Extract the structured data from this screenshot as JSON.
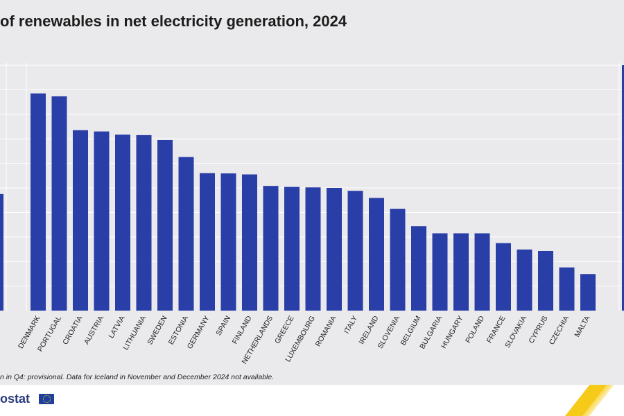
{
  "title": "of renewables in net electricity generation, 2024",
  "note": "n in Q4: provisional. Data for Iceland in November and December 2024 not available.",
  "logo": "ostat",
  "colors": {
    "bar": "#2a3ea8",
    "background": "#eaeaec",
    "grid": "#ffffff",
    "accent": "#f5c400"
  },
  "chart_data": {
    "type": "bar",
    "categories": [
      "DENMARK",
      "PORTUGAL",
      "CROATIA",
      "AUSTRIA",
      "LATVIA",
      "LITHUANIA",
      "SWEDEN",
      "ESTONIA",
      "GERMANY",
      "SPAIN",
      "FINLAND",
      "NETHERLANDS",
      "GREECE",
      "LUXEMBOURG",
      "ROMANIA",
      "ITALY",
      "IRELAND",
      "SLOVENIA",
      "BELGIUM",
      "BULGARIA",
      "HUNGARY",
      "POLAND",
      "FRANCE",
      "SLOVAKIA",
      "CYPRUS",
      "CZECHIA",
      "MALTA"
    ],
    "values": [
      88.5,
      87.3,
      73.5,
      73.0,
      71.7,
      71.5,
      69.5,
      62.6,
      56.0,
      55.9,
      55.5,
      50.8,
      50.4,
      50.2,
      50.0,
      48.8,
      45.9,
      41.5,
      34.4,
      31.5,
      31.5,
      31.5,
      27.5,
      24.9,
      24.3,
      17.6,
      14.9
    ],
    "partial_left_value": 47.5,
    "partial_right_value": 100,
    "ylim": [
      0,
      100
    ],
    "grid": true,
    "xlabel": "",
    "ylabel": ""
  }
}
